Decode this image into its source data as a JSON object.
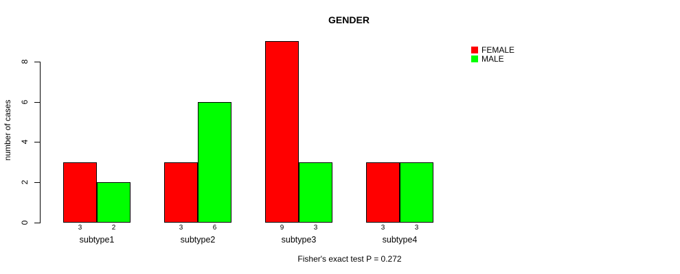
{
  "chart_data": {
    "type": "bar",
    "title": "GENDER",
    "ylabel": "number of cases",
    "xlabel": "",
    "annotation": "Fisher's exact test P = 0.272",
    "categories": [
      "subtype1",
      "subtype2",
      "subtype3",
      "subtype4"
    ],
    "series": [
      {
        "name": "FEMALE",
        "color": "#FF0000",
        "values": [
          3,
          3,
          9,
          3
        ]
      },
      {
        "name": "MALE",
        "color": "#00FF00",
        "values": [
          2,
          6,
          3,
          3
        ]
      }
    ],
    "yticks": [
      0,
      2,
      4,
      6,
      8
    ],
    "ylim": [
      0,
      9
    ],
    "grid": false,
    "legend_position": "top-right",
    "bar_border_color": "#000000",
    "background_color": "#FFFFFF"
  }
}
